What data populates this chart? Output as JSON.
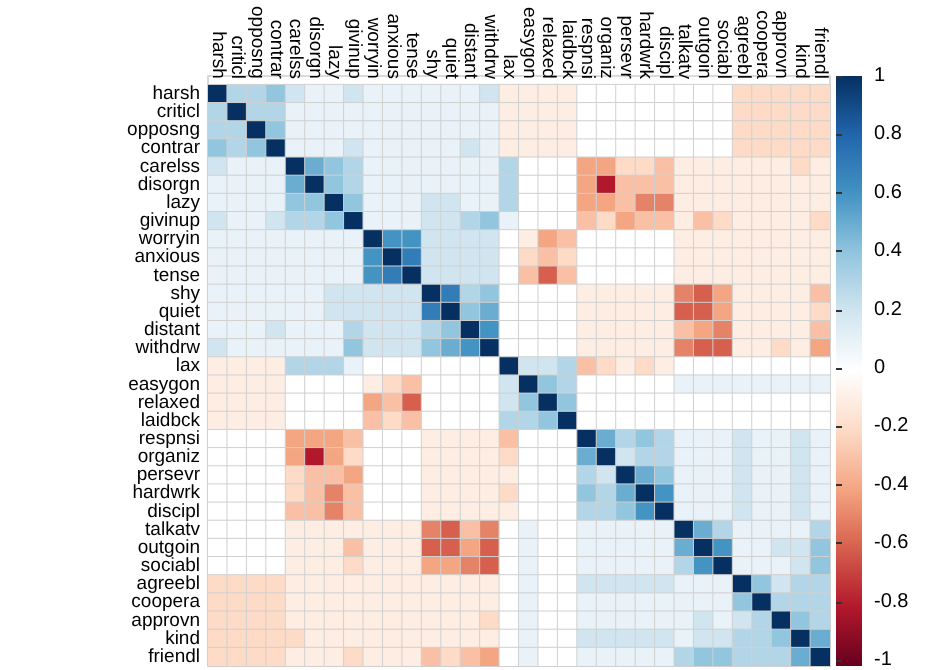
{
  "chart_data": {
    "type": "heatmap",
    "categories": [
      "harsh",
      "criticl",
      "opposng",
      "contrar",
      "carelss",
      "disorgn",
      "lazy",
      "givinup",
      "worryin",
      "anxious",
      "tense",
      "shy",
      "quiet",
      "distant",
      "withdrw",
      "lax",
      "easygon",
      "relaxed",
      "laidbck",
      "respnsi",
      "organiz",
      "persevr",
      "hardwrk",
      "discipl",
      "talkatv",
      "outgoin",
      "sociabl",
      "agreebl",
      "coopera",
      "approvn",
      "kind",
      "friendl"
    ],
    "y_categories": [
      "harsh",
      "criticl",
      "opposng",
      "contrar",
      "carelss",
      "disorgn",
      "lazy",
      "givinup",
      "worryin",
      "anxious",
      "tense",
      "shy",
      "quiet",
      "distant",
      "withdrw",
      "lax",
      "easygon",
      "relaxed",
      "laidbck",
      "respnsi",
      "organiz",
      "persevr",
      "hardwrk",
      "discipl",
      "talkatv",
      "outgoin",
      "sociabl",
      "agreebl",
      "coopera",
      "approvn",
      "kind",
      "friendl"
    ],
    "cells": [
      [
        1,
        0.3,
        0.3,
        0.4,
        0.2,
        0.1,
        0.1,
        0.2,
        0.1,
        0.1,
        0.1,
        0.1,
        0.1,
        0.1,
        0.2,
        -0.1,
        -0.1,
        -0.1,
        -0.1,
        0,
        0,
        0,
        0,
        0,
        0,
        0,
        0,
        -0.2,
        -0.2,
        -0.2,
        -0.2,
        -0.2
      ],
      [
        0.3,
        1,
        0.3,
        0.3,
        0.1,
        0.1,
        0.1,
        0.1,
        0.1,
        0.1,
        0.1,
        0.1,
        0.1,
        0.1,
        0.1,
        -0.1,
        -0.1,
        -0.1,
        -0.1,
        0,
        0,
        0,
        0,
        0,
        0,
        0,
        0,
        -0.2,
        -0.2,
        -0.2,
        -0.2,
        -0.2
      ],
      [
        0.3,
        0.3,
        1,
        0.4,
        0.1,
        0.1,
        0.1,
        0.1,
        0.1,
        0.1,
        0.1,
        0.1,
        0.1,
        0.1,
        0.1,
        -0.1,
        -0.1,
        -0.1,
        -0.1,
        0,
        0,
        0,
        0,
        0,
        0,
        0,
        0,
        -0.2,
        -0.2,
        -0.2,
        -0.2,
        -0.2
      ],
      [
        0.4,
        0.3,
        0.4,
        1,
        0.1,
        0.1,
        0.1,
        0.2,
        0.1,
        0.1,
        0.1,
        0.1,
        0.1,
        0.2,
        0.1,
        -0.1,
        -0.1,
        -0.1,
        -0.1,
        0,
        0,
        0,
        0,
        0,
        0,
        0,
        0,
        -0.2,
        -0.2,
        -0.2,
        -0.2,
        -0.2
      ],
      [
        0.2,
        0.1,
        0.1,
        0.1,
        1,
        0.5,
        0.4,
        0.3,
        0.1,
        0.1,
        0.1,
        0.1,
        0.1,
        0.1,
        0.1,
        0.3,
        0,
        0,
        0,
        -0.4,
        -0.4,
        -0.2,
        -0.2,
        -0.3,
        -0.1,
        -0.1,
        -0.1,
        -0.1,
        -0.1,
        -0.1,
        -0.2,
        -0.1
      ],
      [
        0.1,
        0.1,
        0.1,
        0.1,
        0.5,
        1,
        0.4,
        0.3,
        0.1,
        0.1,
        0.1,
        0.1,
        0.1,
        0.1,
        0.1,
        0.3,
        0,
        0,
        0,
        -0.4,
        -0.8,
        -0.3,
        -0.3,
        -0.3,
        -0.1,
        -0.1,
        -0.1,
        -0.1,
        -0.1,
        -0.1,
        -0.1,
        -0.1
      ],
      [
        0.1,
        0.1,
        0.1,
        0.1,
        0.4,
        0.4,
        1,
        0.4,
        0.1,
        0.1,
        0.1,
        0.2,
        0.2,
        0.1,
        0.1,
        0.3,
        0,
        0,
        0,
        -0.4,
        -0.4,
        -0.3,
        -0.5,
        -0.5,
        -0.1,
        -0.1,
        -0.1,
        -0.1,
        -0.1,
        -0.1,
        -0.1,
        -0.1
      ],
      [
        0.2,
        0.1,
        0.1,
        0.2,
        0.3,
        0.3,
        0.4,
        1,
        0.1,
        0.1,
        0.1,
        0.2,
        0.2,
        0.3,
        0.4,
        0.1,
        0,
        0,
        0,
        -0.3,
        -0.2,
        -0.4,
        -0.3,
        -0.3,
        -0.1,
        -0.3,
        -0.2,
        -0.1,
        -0.1,
        -0.1,
        -0.1,
        -0.2
      ],
      [
        0.1,
        0.1,
        0.1,
        0.1,
        0.1,
        0.1,
        0.1,
        0.1,
        1,
        0.6,
        0.6,
        0.2,
        0.2,
        0.2,
        0.2,
        0,
        -0.1,
        -0.4,
        -0.3,
        0,
        0,
        0,
        0,
        0,
        -0.1,
        -0.1,
        -0.1,
        -0.1,
        -0.1,
        -0.1,
        -0.1,
        -0.1
      ],
      [
        0.1,
        0.1,
        0.1,
        0.1,
        0.1,
        0.1,
        0.1,
        0.1,
        0.6,
        1,
        0.7,
        0.2,
        0.2,
        0.2,
        0.2,
        0,
        -0.2,
        -0.3,
        -0.2,
        0,
        0,
        0,
        0,
        0,
        -0.1,
        -0.1,
        -0.1,
        -0.1,
        -0.1,
        -0.1,
        -0.1,
        -0.1
      ],
      [
        0.1,
        0.1,
        0.1,
        0.1,
        0.1,
        0.1,
        0.1,
        0.1,
        0.6,
        0.7,
        1,
        0.2,
        0.2,
        0.2,
        0.2,
        0,
        -0.3,
        -0.6,
        -0.3,
        0,
        0,
        0,
        0,
        0,
        -0.1,
        -0.1,
        -0.1,
        -0.1,
        -0.1,
        -0.1,
        -0.1,
        -0.1
      ],
      [
        0.1,
        0.1,
        0.1,
        0.1,
        0.1,
        0.1,
        0.2,
        0.2,
        0.2,
        0.2,
        0.2,
        1,
        0.7,
        0.3,
        0.4,
        0,
        0,
        0,
        0,
        -0.1,
        -0.1,
        -0.1,
        -0.1,
        -0.1,
        -0.5,
        -0.6,
        -0.4,
        -0.1,
        -0.1,
        -0.1,
        -0.1,
        -0.3
      ],
      [
        0.1,
        0.1,
        0.1,
        0.1,
        0.1,
        0.1,
        0.2,
        0.2,
        0.2,
        0.2,
        0.2,
        0.7,
        1,
        0.4,
        0.5,
        0,
        0,
        0,
        0,
        -0.1,
        -0.1,
        -0.1,
        -0.1,
        -0.1,
        -0.6,
        -0.6,
        -0.4,
        -0.1,
        -0.1,
        -0.1,
        -0.1,
        -0.2
      ],
      [
        0.1,
        0.1,
        0.1,
        0.2,
        0.1,
        0.1,
        0.1,
        0.3,
        0.2,
        0.2,
        0.2,
        0.3,
        0.4,
        1,
        0.6,
        0,
        0,
        0,
        0,
        -0.1,
        -0.1,
        -0.1,
        -0.1,
        -0.1,
        -0.3,
        -0.4,
        -0.5,
        -0.1,
        -0.1,
        -0.1,
        -0.1,
        -0.3
      ],
      [
        0.2,
        0.1,
        0.1,
        0.1,
        0.1,
        0.1,
        0.1,
        0.4,
        0.2,
        0.2,
        0.2,
        0.4,
        0.5,
        0.6,
        1,
        0,
        0,
        0,
        0,
        -0.1,
        -0.1,
        -0.1,
        -0.1,
        -0.1,
        -0.5,
        -0.6,
        -0.6,
        -0.1,
        -0.1,
        -0.2,
        -0.1,
        -0.4
      ],
      [
        -0.1,
        -0.1,
        -0.1,
        -0.1,
        0.3,
        0.3,
        0.3,
        0.1,
        0,
        0,
        0,
        0,
        0,
        0,
        0,
        1,
        0.2,
        0.2,
        0.3,
        -0.3,
        -0.2,
        -0.1,
        -0.2,
        -0.1,
        0,
        0,
        0,
        0,
        0,
        0,
        0,
        0
      ],
      [
        -0.1,
        -0.1,
        -0.1,
        -0.1,
        0,
        0,
        0,
        0,
        -0.1,
        -0.2,
        -0.3,
        0,
        0,
        0,
        0,
        0.2,
        1,
        0.4,
        0.3,
        0,
        0,
        0,
        0,
        0,
        0.1,
        0.1,
        0.1,
        0.1,
        0.1,
        0.1,
        0.1,
        0.1
      ],
      [
        -0.1,
        -0.1,
        -0.1,
        -0.1,
        0,
        0,
        0,
        0,
        -0.4,
        -0.3,
        -0.6,
        0,
        0,
        0,
        0,
        0.2,
        0.4,
        1,
        0.4,
        0,
        0,
        0,
        0,
        0,
        0,
        0,
        0,
        0,
        0,
        0,
        0,
        0
      ],
      [
        -0.1,
        -0.1,
        -0.1,
        -0.1,
        0,
        0,
        0,
        0,
        -0.3,
        -0.2,
        -0.3,
        0,
        0,
        0,
        0,
        0.3,
        0.3,
        0.4,
        1,
        0,
        0,
        0,
        0,
        0,
        0,
        0,
        0,
        0,
        0,
        0,
        0,
        0
      ],
      [
        0,
        0,
        0,
        0,
        -0.4,
        -0.4,
        -0.4,
        -0.3,
        0,
        0,
        0,
        -0.1,
        -0.1,
        -0.1,
        -0.1,
        -0.3,
        0,
        0,
        0,
        1,
        0.5,
        0.3,
        0.4,
        0.3,
        0.1,
        0.1,
        0.1,
        0.2,
        0.1,
        0.1,
        0.2,
        0.1
      ],
      [
        0,
        0,
        0,
        0,
        -0.4,
        -0.8,
        -0.4,
        -0.2,
        0,
        0,
        0,
        -0.1,
        -0.1,
        -0.1,
        -0.1,
        -0.2,
        0,
        0,
        0,
        0.5,
        1,
        0.2,
        0.3,
        0.3,
        0.1,
        0.1,
        0.1,
        0.2,
        0.1,
        0.1,
        0.2,
        0.1
      ],
      [
        0,
        0,
        0,
        0,
        -0.2,
        -0.3,
        -0.3,
        -0.4,
        0,
        0,
        0,
        -0.1,
        -0.1,
        -0.1,
        -0.1,
        -0.1,
        0,
        0,
        0,
        0.3,
        0.2,
        1,
        0.5,
        0.4,
        0.1,
        0.1,
        0.1,
        0.2,
        0.1,
        0.1,
        0.2,
        0.1
      ],
      [
        0,
        0,
        0,
        0,
        -0.2,
        -0.3,
        -0.5,
        -0.3,
        0,
        0,
        0,
        -0.1,
        -0.1,
        -0.1,
        -0.1,
        -0.2,
        0,
        0,
        0,
        0.4,
        0.3,
        0.5,
        1,
        0.6,
        0.1,
        0.1,
        0.1,
        0.2,
        0.1,
        0.1,
        0.2,
        0.1
      ],
      [
        0,
        0,
        0,
        0,
        -0.3,
        -0.3,
        -0.5,
        -0.3,
        0,
        0,
        0,
        -0.1,
        -0.1,
        -0.1,
        -0.1,
        -0.1,
        0,
        0,
        0,
        0.3,
        0.3,
        0.4,
        0.6,
        1,
        0.1,
        0.1,
        0.1,
        0.2,
        0.1,
        0.1,
        0.2,
        0.1
      ],
      [
        0,
        0,
        0,
        0,
        -0.1,
        -0.1,
        -0.1,
        -0.1,
        -0.1,
        -0.1,
        -0.1,
        -0.5,
        -0.6,
        -0.3,
        -0.5,
        0,
        0.1,
        0,
        0,
        0.1,
        0.1,
        0.1,
        0.1,
        0.1,
        1,
        0.5,
        0.3,
        0.1,
        0.1,
        0.1,
        0.1,
        0.3
      ],
      [
        0,
        0,
        0,
        0,
        -0.1,
        -0.1,
        -0.1,
        -0.3,
        -0.1,
        -0.1,
        -0.1,
        -0.6,
        -0.6,
        -0.4,
        -0.6,
        0,
        0.1,
        0,
        0,
        0.1,
        0.1,
        0.1,
        0.1,
        0.1,
        0.5,
        1,
        0.6,
        0.1,
        0.1,
        0.2,
        0.2,
        0.4
      ],
      [
        0,
        0,
        0,
        0,
        -0.1,
        -0.1,
        -0.1,
        -0.2,
        -0.1,
        -0.1,
        -0.1,
        -0.4,
        -0.4,
        -0.5,
        -0.6,
        0,
        0.1,
        0,
        0,
        0.1,
        0.1,
        0.1,
        0.1,
        0.1,
        0.3,
        0.6,
        1,
        0.1,
        0.1,
        0.1,
        0.2,
        0.4
      ],
      [
        -0.2,
        -0.2,
        -0.2,
        -0.2,
        -0.1,
        -0.1,
        -0.1,
        -0.1,
        -0.1,
        -0.1,
        -0.1,
        -0.1,
        -0.1,
        -0.1,
        -0.1,
        0,
        0.1,
        0,
        0,
        0.2,
        0.2,
        0.2,
        0.2,
        0.2,
        0.1,
        0.1,
        0.1,
        1,
        0.4,
        0.2,
        0.3,
        0.3
      ],
      [
        -0.2,
        -0.2,
        -0.2,
        -0.2,
        -0.1,
        -0.1,
        -0.1,
        -0.1,
        -0.1,
        -0.1,
        -0.1,
        -0.1,
        -0.1,
        -0.1,
        -0.1,
        0,
        0.1,
        0,
        0,
        0.1,
        0.1,
        0.1,
        0.1,
        0.1,
        0.1,
        0.1,
        0.1,
        0.4,
        1,
        0.3,
        0.3,
        0.3
      ],
      [
        -0.2,
        -0.2,
        -0.2,
        -0.2,
        -0.1,
        -0.1,
        -0.1,
        -0.1,
        -0.1,
        -0.1,
        -0.1,
        -0.1,
        -0.1,
        -0.1,
        -0.2,
        0,
        0.1,
        0,
        0,
        0.1,
        0.1,
        0.1,
        0.1,
        0.1,
        0.1,
        0.2,
        0.1,
        0.2,
        0.3,
        1,
        0.4,
        0.3
      ],
      [
        -0.2,
        -0.2,
        -0.2,
        -0.2,
        -0.2,
        -0.1,
        -0.1,
        -0.1,
        -0.1,
        -0.1,
        -0.1,
        -0.1,
        -0.1,
        -0.1,
        -0.1,
        0,
        0.1,
        0,
        0,
        0.2,
        0.2,
        0.2,
        0.2,
        0.2,
        0.1,
        0.2,
        0.2,
        0.3,
        0.3,
        0.4,
        1,
        0.5
      ],
      [
        -0.2,
        -0.2,
        -0.2,
        -0.2,
        -0.1,
        -0.1,
        -0.1,
        -0.2,
        -0.1,
        -0.1,
        -0.1,
        -0.3,
        -0.2,
        -0.3,
        -0.4,
        0,
        0.1,
        0,
        0,
        0.1,
        0.1,
        0.1,
        0.1,
        0.1,
        0.3,
        0.4,
        0.4,
        0.3,
        0.3,
        0.3,
        0.5,
        1
      ]
    ],
    "clim": [
      -1,
      1
    ],
    "cticks": [
      -1,
      -0.8,
      -0.6,
      -0.4,
      -0.2,
      0,
      0.2,
      0.4,
      0.6,
      0.8,
      1
    ]
  }
}
